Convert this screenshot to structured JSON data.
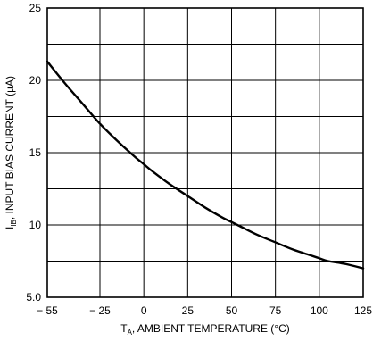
{
  "chart_data": {
    "type": "line",
    "title": "",
    "xlabel": {
      "prefix": "T",
      "subscript": "A",
      "text": ", AMBIENT TEMPERATURE (°C)"
    },
    "ylabel": {
      "prefix": "I",
      "subscript": "IB",
      "text": ", INPUT BIAS CURRENT (µA)"
    },
    "xlim": [
      -55,
      125
    ],
    "ylim": [
      5,
      25
    ],
    "x_ticks": [
      -55,
      -25,
      0,
      25,
      50,
      75,
      100,
      125
    ],
    "x_tick_labels": [
      "− 55",
      "− 25",
      "0",
      "25",
      "50",
      "75",
      "100",
      "125"
    ],
    "y_ticks": [
      5,
      10,
      15,
      20,
      25
    ],
    "y_tick_labels": [
      "5.0",
      "10",
      "15",
      "20",
      "25"
    ],
    "grid_x": [
      -55,
      -25,
      0,
      25,
      50,
      75,
      100,
      125
    ],
    "grid_y": [
      5,
      7.5,
      10,
      12.5,
      15,
      17.5,
      20,
      22.5,
      25
    ],
    "grid": true,
    "series": [
      {
        "x": [
          -55,
          -45,
          -35,
          -25,
          -15,
          -5,
          0,
          5,
          15,
          25,
          35,
          45,
          50,
          55,
          65,
          75,
          85,
          95,
          100,
          105,
          115,
          125
        ],
        "y": [
          21.3,
          19.8,
          18.4,
          17.0,
          15.8,
          14.7,
          14.2,
          13.7,
          12.8,
          12.0,
          11.2,
          10.5,
          10.2,
          9.9,
          9.3,
          8.8,
          8.3,
          7.9,
          7.7,
          7.5,
          7.3,
          7.0
        ]
      }
    ],
    "colors": {
      "line": "#000000",
      "grid": "#000000",
      "background": "#ffffff"
    }
  }
}
